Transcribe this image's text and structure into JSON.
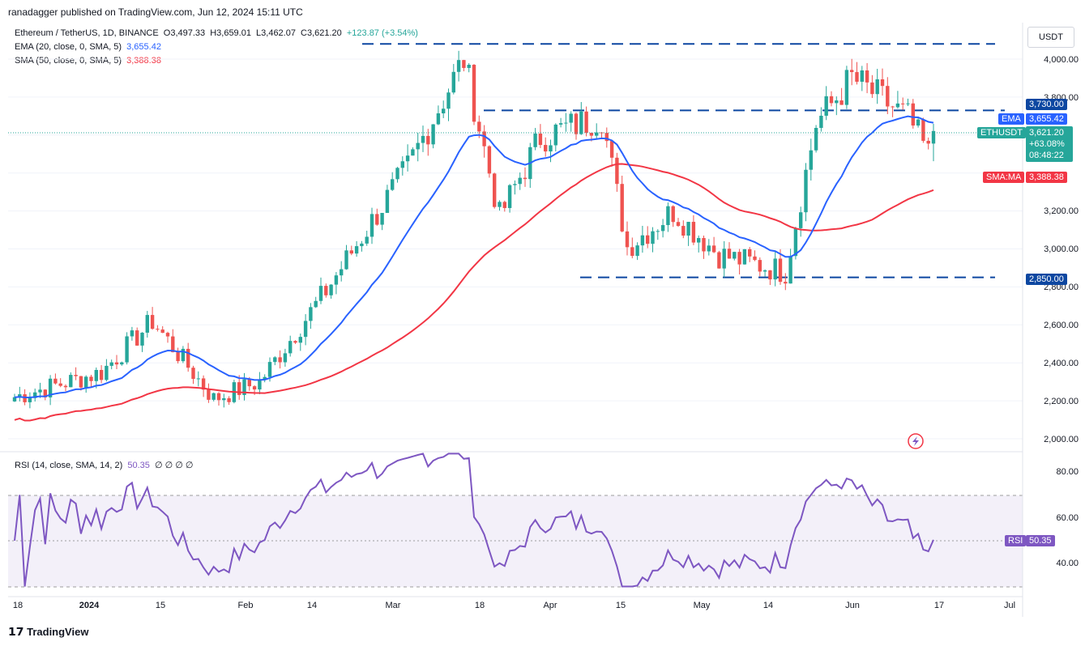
{
  "header": {
    "published": "ranadagger published on TradingView.com, Jun 12, 2024 15:11 UTC"
  },
  "legend": {
    "symbol": "Ethereum / TetherUS, 1D, BINANCE",
    "open": "O3,497.33",
    "high": "H3,659.01",
    "low": "L3,462.07",
    "close": "C3,621.20",
    "change": "+123.87 (+3.54%)",
    "ema_label": "EMA (20, close, 0, SMA, 5)",
    "ema_value": "3,655.42",
    "sma_label": "SMA (50, close, 0, SMA, 5)",
    "sma_value": "3,388.38",
    "rsi_label": "RSI (14, close, SMA, 14, 2)",
    "rsi_value": "50.35",
    "rsi_extra": "∅ ∅ ∅ ∅"
  },
  "currency_button": "USDT",
  "tags": {
    "resistance": "3,730.00",
    "ema_name": "EMA",
    "ema_price": "3,655.42",
    "symbol_name": "ETHUSDT",
    "last_price": "3,621.20",
    "last_change": "+63.08%",
    "countdown": "08:48:22",
    "sma_name": "SMA:MA",
    "sma_price": "3,388.38",
    "support": "2,850.00",
    "rsi_name": "RSI",
    "rsi_price": "50.35"
  },
  "price_axis": [
    "4,000.00",
    "3,800.00",
    "3,200.00",
    "3,000.00",
    "2,800.00",
    "2,600.00",
    "2,400.00",
    "2,200.00",
    "2,000.00"
  ],
  "rsi_axis": [
    "80.00",
    "60.00",
    "40.00"
  ],
  "time_axis": [
    "18",
    "2024",
    "15",
    "Feb",
    "14",
    "Mar",
    "18",
    "Apr",
    "15",
    "May",
    "14",
    "Jun",
    "17",
    "Jul"
  ],
  "footer": {
    "brand": "TradingView"
  },
  "colors": {
    "up": "#26a69a",
    "down": "#ef5350",
    "ema": "#2962ff",
    "sma": "#f23645",
    "rsi": "#7e57c2",
    "level": "#0d47a1"
  },
  "chart_data": {
    "type": "candlestick",
    "symbol": "ETHUSDT",
    "interval": "1D",
    "date_range": [
      "2023-12-15",
      "2024-06-12"
    ],
    "price_range": [
      1950,
      4150
    ],
    "horizontal_levels": [
      4080,
      3730,
      2850
    ],
    "ohlc_anchors": [
      {
        "date": "2023-12-15",
        "close": 2220
      },
      {
        "date": "2024-01-01",
        "close": 2350
      },
      {
        "date": "2024-01-11",
        "close": 2620
      },
      {
        "date": "2024-01-23",
        "close": 2210
      },
      {
        "date": "2024-02-01",
        "close": 2300
      },
      {
        "date": "2024-02-14",
        "close": 2780
      },
      {
        "date": "2024-03-01",
        "close": 3430
      },
      {
        "date": "2024-03-12",
        "close": 4000
      },
      {
        "date": "2024-03-19",
        "close": 3170
      },
      {
        "date": "2024-03-27",
        "close": 3590
      },
      {
        "date": "2024-04-08",
        "close": 3700
      },
      {
        "date": "2024-04-13",
        "close": 3010
      },
      {
        "date": "2024-04-22",
        "close": 3200
      },
      {
        "date": "2024-05-01",
        "close": 2970
      },
      {
        "date": "2024-05-14",
        "close": 2880
      },
      {
        "date": "2024-05-20",
        "close": 3660
      },
      {
        "date": "2024-05-27",
        "close": 3900
      },
      {
        "date": "2024-06-07",
        "close": 3690
      },
      {
        "date": "2024-06-11",
        "close": 3497.33
      },
      {
        "date": "2024-06-12",
        "open": 3497.33,
        "high": 3659.01,
        "low": 3462.07,
        "close": 3621.2
      }
    ],
    "rsi_range": [
      25,
      90
    ],
    "rsi_bands": [
      70,
      50,
      30
    ]
  }
}
